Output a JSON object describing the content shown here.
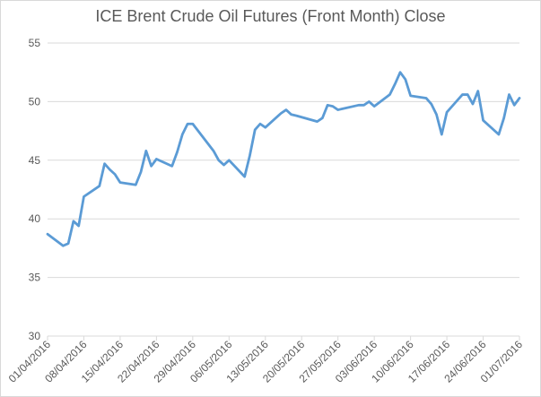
{
  "chart_data": {
    "type": "line",
    "title": "ICE Brent Crude Oil Futures (Front Month) Close",
    "xlabel": "",
    "ylabel": "",
    "ylim": [
      30,
      55
    ],
    "yticks": [
      "30",
      "35",
      "40",
      "45",
      "50",
      "55"
    ],
    "xticks": [
      "01/04/2016",
      "08/04/2016",
      "15/04/2016",
      "22/04/2016",
      "29/04/2016",
      "06/05/2016",
      "13/05/2016",
      "20/05/2016",
      "27/05/2016",
      "03/06/2016",
      "10/06/2016",
      "17/06/2016",
      "24/06/2016",
      "01/07/2016"
    ],
    "grid": "horizontal",
    "line_color": "#5b9bd5",
    "series": [
      {
        "values": [
          [
            "01/04/2016",
            38.7
          ],
          [
            "04/04/2016",
            37.7
          ],
          [
            "05/04/2016",
            37.9
          ],
          [
            "06/04/2016",
            39.8
          ],
          [
            "07/04/2016",
            39.4
          ],
          [
            "08/04/2016",
            41.9
          ],
          [
            "11/04/2016",
            42.8
          ],
          [
            "12/04/2016",
            44.7
          ],
          [
            "13/04/2016",
            44.2
          ],
          [
            "14/04/2016",
            43.8
          ],
          [
            "15/04/2016",
            43.1
          ],
          [
            "18/04/2016",
            42.9
          ],
          [
            "19/04/2016",
            44.0
          ],
          [
            "20/04/2016",
            45.8
          ],
          [
            "21/04/2016",
            44.5
          ],
          [
            "22/04/2016",
            45.1
          ],
          [
            "25/04/2016",
            44.5
          ],
          [
            "26/04/2016",
            45.7
          ],
          [
            "27/04/2016",
            47.2
          ],
          [
            "28/04/2016",
            48.1
          ],
          [
            "29/04/2016",
            48.1
          ],
          [
            "03/05/2016",
            45.8
          ],
          [
            "04/05/2016",
            45.0
          ],
          [
            "05/05/2016",
            44.6
          ],
          [
            "06/05/2016",
            45.0
          ],
          [
            "09/05/2016",
            43.6
          ],
          [
            "10/05/2016",
            45.4
          ],
          [
            "11/05/2016",
            47.6
          ],
          [
            "12/05/2016",
            48.1
          ],
          [
            "13/05/2016",
            47.8
          ],
          [
            "16/05/2016",
            49.0
          ],
          [
            "17/05/2016",
            49.3
          ],
          [
            "18/05/2016",
            48.9
          ],
          [
            "19/05/2016",
            48.8
          ],
          [
            "23/05/2016",
            48.3
          ],
          [
            "24/05/2016",
            48.6
          ],
          [
            "25/05/2016",
            49.7
          ],
          [
            "26/05/2016",
            49.6
          ],
          [
            "27/05/2016",
            49.3
          ],
          [
            "31/05/2016",
            49.7
          ],
          [
            "01/06/2016",
            49.7
          ],
          [
            "02/06/2016",
            50.0
          ],
          [
            "03/06/2016",
            49.6
          ],
          [
            "06/06/2016",
            50.6
          ],
          [
            "07/06/2016",
            51.5
          ],
          [
            "08/06/2016",
            52.5
          ],
          [
            "09/06/2016",
            51.9
          ],
          [
            "10/06/2016",
            50.5
          ],
          [
            "13/06/2016",
            50.3
          ],
          [
            "14/06/2016",
            49.8
          ],
          [
            "15/06/2016",
            48.9
          ],
          [
            "16/06/2016",
            47.2
          ],
          [
            "17/06/2016",
            49.1
          ],
          [
            "20/06/2016",
            50.6
          ],
          [
            "21/06/2016",
            50.6
          ],
          [
            "22/06/2016",
            49.8
          ],
          [
            "23/06/2016",
            50.9
          ],
          [
            "24/06/2016",
            48.4
          ],
          [
            "27/06/2016",
            47.2
          ],
          [
            "28/06/2016",
            48.6
          ],
          [
            "29/06/2016",
            50.6
          ],
          [
            "30/06/2016",
            49.7
          ],
          [
            "01/07/2016",
            50.3
          ]
        ]
      }
    ]
  }
}
